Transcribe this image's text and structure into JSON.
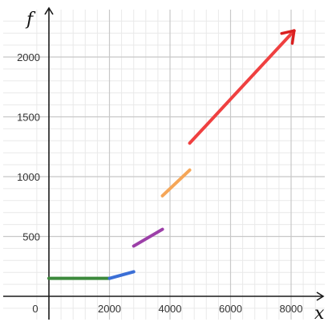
{
  "chart_data": {
    "type": "line",
    "xlabel": "x",
    "ylabel": "f",
    "xlim": [
      -400,
      8800
    ],
    "ylim": [
      -200,
      2420
    ],
    "grid": true,
    "x_ticks": [
      0,
      2000,
      4000,
      6000,
      8000
    ],
    "x_tick_labels": [
      "0",
      "2000",
      "4000",
      "6000",
      "8000"
    ],
    "y_ticks": [
      500,
      1000,
      1500,
      2000
    ],
    "y_tick_labels": [
      "500",
      "1000",
      "1500",
      "2000"
    ],
    "series": [
      {
        "color": "#3c8a3c",
        "points": [
          [
            0,
            150
          ],
          [
            2000,
            150
          ]
        ]
      },
      {
        "color": "#3b6fd6",
        "points": [
          [
            2000,
            150
          ],
          [
            2800,
            205
          ]
        ]
      },
      {
        "color": "#9c3fa8",
        "points": [
          [
            2800,
            420
          ],
          [
            3750,
            560
          ]
        ]
      },
      {
        "color": "#f5a658",
        "points": [
          [
            3750,
            840
          ],
          [
            4650,
            1055
          ]
        ]
      },
      {
        "color": "#ef4040",
        "points": [
          [
            4650,
            1280
          ],
          [
            8100,
            2220
          ]
        ],
        "arrow": true
      }
    ],
    "colors": {
      "axis": "#1a1a1a",
      "grid_major": "#c8c8c8",
      "grid_minor": "#e9e9e9",
      "arrow": "#d91f1f"
    }
  }
}
